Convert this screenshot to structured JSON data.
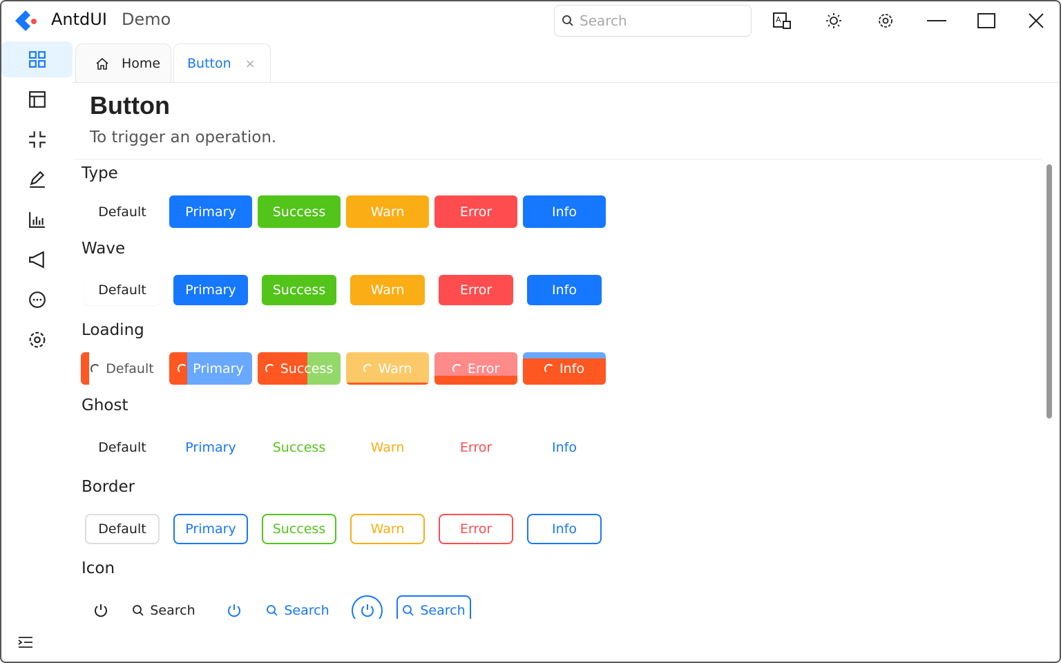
{
  "app": {
    "title": "AntdUI",
    "subtitle": "Demo"
  },
  "search": {
    "placeholder": "Search"
  },
  "sidebar": {
    "icons": [
      "dashboard-icon",
      "layout-icon",
      "compress-icon",
      "edit-icon",
      "chart-icon",
      "notification-icon",
      "message-icon",
      "settings-icon"
    ],
    "collapse_icon": "menu-fold-icon"
  },
  "tabs": [
    {
      "label": "Home",
      "icon": "home-icon"
    },
    {
      "label": "Button",
      "active": true
    }
  ],
  "page": {
    "title": "Button",
    "description": "To trigger an operation."
  },
  "colors": {
    "default": "#222222",
    "primary": "#1677ff",
    "success": "#52c41a",
    "warn": "#faad14",
    "error": "#ff4d4f",
    "info": "#1677ff",
    "loading_overlay": "#ff5722"
  },
  "labels": [
    "Default",
    "Primary",
    "Success",
    "Warn",
    "Error",
    "Info"
  ],
  "sections": {
    "type": "Type",
    "wave": "Wave",
    "loading": "Loading",
    "ghost": "Ghost",
    "border": "Border",
    "icon": "Icon"
  },
  "icon_row": [
    {
      "icon": "power-icon"
    },
    {
      "icon": "search-icon",
      "label": "Search"
    },
    {
      "icon": "power-icon"
    },
    {
      "icon": "search-icon",
      "label": "Search"
    },
    {
      "icon": "power-icon"
    },
    {
      "icon": "search-icon",
      "label": "Search"
    }
  ]
}
